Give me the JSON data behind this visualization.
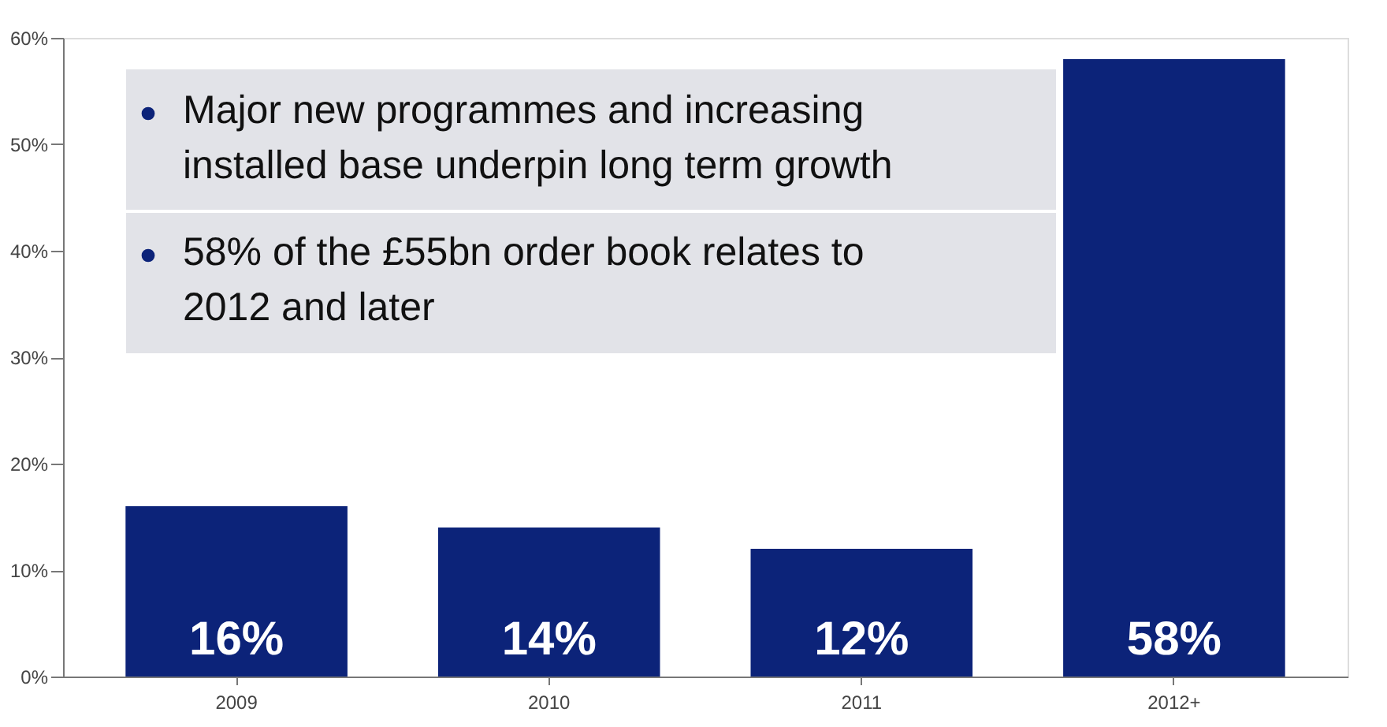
{
  "chart_data": {
    "type": "bar",
    "categories": [
      "2009",
      "2010",
      "2011",
      "2012+"
    ],
    "values": [
      16,
      14,
      12,
      58
    ],
    "color": "#0c2379",
    "data_labels": true,
    "value_labels": [
      "16%",
      "14%",
      "12%",
      "58%"
    ],
    "ylim": [
      0,
      60
    ],
    "yticks": [
      {
        "value": 0,
        "label": "0%"
      },
      {
        "value": 10,
        "label": "10%"
      },
      {
        "value": 20,
        "label": "20%"
      },
      {
        "value": 30,
        "label": "30%"
      },
      {
        "value": 40,
        "label": "40%"
      },
      {
        "value": 50,
        "label": "50%"
      },
      {
        "value": 60,
        "label": "60%"
      }
    ],
    "grid": false,
    "annotations": [
      "Major new programmes and increasing\ninstalled base underpin long term growth",
      "58% of the £55bn order book relates to\n2012 and later"
    ]
  }
}
